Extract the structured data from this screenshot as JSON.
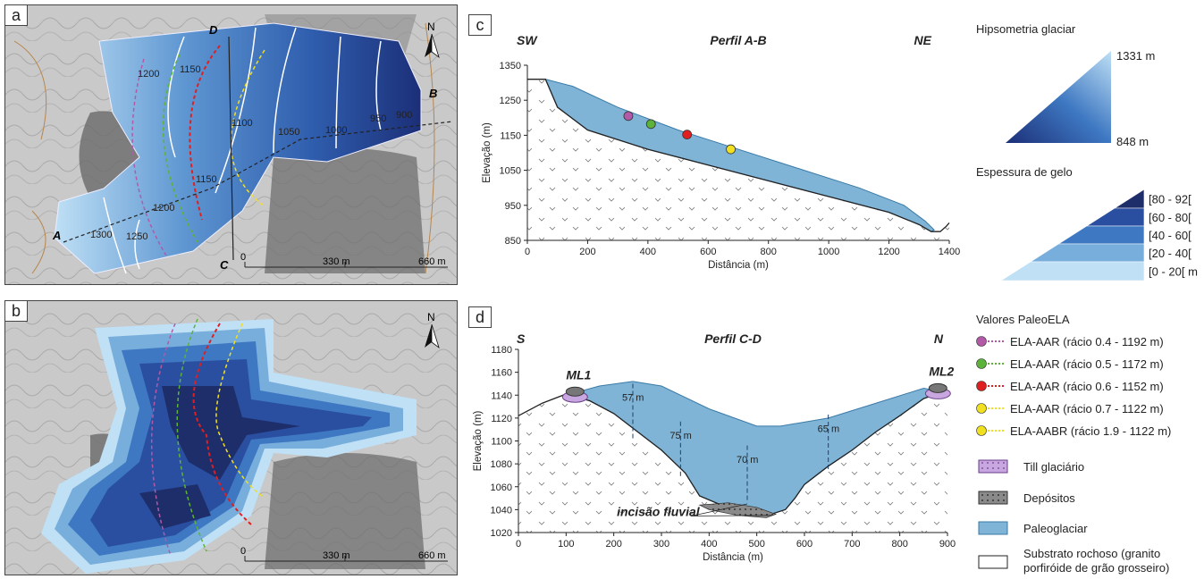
{
  "panels": {
    "a": {
      "label": "a",
      "contour_labels": [
        "1200",
        "1150",
        "1100",
        "1050",
        "1000",
        "950",
        "900",
        "1150",
        "1200",
        "1250",
        "1300"
      ],
      "points": [
        "A",
        "B",
        "C",
        "D"
      ],
      "north": "N",
      "scale": [
        "0",
        "330 m",
        "660 m"
      ]
    },
    "b": {
      "label": "b",
      "north": "N",
      "scale": [
        "0",
        "330 m",
        "660 m"
      ]
    },
    "c": {
      "label": "c"
    },
    "d": {
      "label": "d"
    }
  },
  "legend": {
    "hyps_title": "Hipsometria glaciar",
    "hyps_max": "1331 m",
    "hyps_min": "848 m",
    "thick_title": "Espessura de gelo",
    "thick_classes": [
      "[80 - 92[",
      "[60 - 80[",
      "[40 - 60[",
      "[20 - 40[",
      "[0 - 20[   m"
    ],
    "thick_colors": [
      "#1e2e6b",
      "#2a4fa0",
      "#3e78c2",
      "#78aedc",
      "#bfe0f5"
    ],
    "ela_title": "Valores PaleoELA",
    "ela_items": [
      {
        "label": "ELA-AAR (rácio 0.4 - 1192 m)",
        "color": "#b25aa8"
      },
      {
        "label": "ELA-AAR (rácio 0.5 - 1172 m)",
        "color": "#5db33a"
      },
      {
        "label": "ELA-AAR (rácio 0.6 - 1152 m)",
        "color": "#e02020"
      },
      {
        "label": "ELA-AAR (rácio 0.7 - 1122 m)",
        "color": "#f0e020"
      },
      {
        "label": "ELA-AABR (rácio 1.9 - 1122 m)",
        "color": "#f0e020"
      }
    ],
    "materials": [
      "Till glaciário",
      "Depósitos",
      "Paleoglaciar",
      "Substrato rochoso (granito",
      "porfiróide de grão grosseiro)"
    ]
  },
  "chart_data": [
    {
      "type": "area",
      "title": "Perfil A-B",
      "left_label": "SW",
      "right_label": "NE",
      "xlabel": "Distância (m)",
      "ylabel": "Elevação (m)",
      "xlim": [
        0,
        1400
      ],
      "ylim": [
        850,
        1350
      ],
      "xticks": [
        0,
        200,
        400,
        600,
        800,
        1000,
        1200,
        1400
      ],
      "yticks": [
        850,
        950,
        1050,
        1150,
        1250,
        1350
      ],
      "ice_surface": {
        "x": [
          0,
          60,
          150,
          300,
          500,
          700,
          900,
          1100,
          1250,
          1320,
          1350
        ],
        "y": [
          1310,
          1310,
          1290,
          1230,
          1165,
          1110,
          1055,
          1000,
          950,
          905,
          880
        ]
      },
      "bed": {
        "x": [
          0,
          60,
          100,
          200,
          400,
          600,
          800,
          1000,
          1200,
          1300,
          1340,
          1370,
          1390,
          1400
        ],
        "y": [
          1310,
          1310,
          1230,
          1165,
          1110,
          1065,
          1020,
          975,
          930,
          895,
          875,
          875,
          890,
          900
        ]
      },
      "ela_points": [
        {
          "x": 335,
          "y": 1205,
          "color": "#b25aa8"
        },
        {
          "x": 410,
          "y": 1182,
          "color": "#5db33a"
        },
        {
          "x": 530,
          "y": 1152,
          "color": "#e02020"
        },
        {
          "x": 675,
          "y": 1110,
          "color": "#f0e020"
        }
      ]
    },
    {
      "type": "area",
      "title": "Perfil C-D",
      "left_label": "S",
      "right_label": "N",
      "xlabel": "Distância (m)",
      "ylabel": "Elevação (m)",
      "xlim": [
        0,
        900
      ],
      "ylim": [
        1020,
        1180
      ],
      "xticks": [
        0,
        100,
        200,
        300,
        400,
        500,
        600,
        700,
        800,
        900
      ],
      "yticks": [
        1020,
        1040,
        1060,
        1080,
        1100,
        1120,
        1140,
        1160,
        1180
      ],
      "moraines": [
        "ML1",
        "ML2"
      ],
      "incision_label": "incisão fluvial",
      "thickness_labels": [
        {
          "x": 240,
          "y": 1135,
          "text": "57 m"
        },
        {
          "x": 340,
          "y": 1102,
          "text": "75 m"
        },
        {
          "x": 480,
          "y": 1081,
          "text": "70 m"
        },
        {
          "x": 650,
          "y": 1108,
          "text": "65 m"
        }
      ],
      "ice_surface": {
        "x": [
          100,
          170,
          240,
          300,
          400,
          500,
          550,
          650,
          750,
          850,
          890
        ],
        "y": [
          1140,
          1148,
          1152,
          1148,
          1128,
          1113,
          1113,
          1120,
          1133,
          1146,
          1143
        ]
      },
      "bed": {
        "x": [
          0,
          50,
          100,
          150,
          200,
          250,
          300,
          350,
          380,
          420,
          460,
          500,
          530,
          560,
          580,
          600,
          650,
          700,
          750,
          800,
          850,
          890,
          900
        ],
        "y": [
          1122,
          1133,
          1141,
          1135,
          1124,
          1108,
          1092,
          1072,
          1052,
          1045,
          1042,
          1040,
          1036,
          1040,
          1050,
          1062,
          1078,
          1092,
          1108,
          1122,
          1137,
          1143,
          1143
        ]
      }
    }
  ]
}
